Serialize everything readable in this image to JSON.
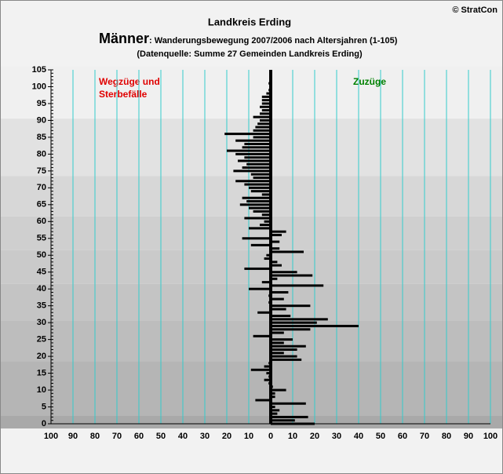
{
  "chart_data": {
    "type": "bar",
    "orientation": "horizontal",
    "copyright": "© StratCon",
    "title": "Landkreis Erding",
    "subtitle_main": "Männer",
    "subtitle_rest": ": Wanderungsbewegung 2007/2006 nach Altersjahren (1-105)",
    "source": "(Datenquelle: Summe 27 Gemeinden Landkreis Erding)",
    "annotation_left": [
      "Wegzüge und",
      "Sterbefälle"
    ],
    "annotation_right": "Zuzüge",
    "color": "#000000",
    "y": [
      0,
      1,
      2,
      3,
      4,
      5,
      6,
      7,
      8,
      9,
      10,
      11,
      12,
      13,
      14,
      15,
      16,
      17,
      18,
      19,
      20,
      21,
      22,
      23,
      24,
      25,
      26,
      27,
      28,
      29,
      30,
      31,
      32,
      33,
      34,
      35,
      36,
      37,
      38,
      39,
      40,
      41,
      42,
      43,
      44,
      45,
      46,
      47,
      48,
      49,
      50,
      51,
      52,
      53,
      54,
      55,
      56,
      57,
      58,
      59,
      60,
      61,
      62,
      63,
      64,
      65,
      66,
      67,
      68,
      69,
      70,
      71,
      72,
      73,
      74,
      75,
      76,
      77,
      78,
      79,
      80,
      81,
      82,
      83,
      84,
      85,
      86,
      87,
      88,
      89,
      90,
      91,
      92,
      93,
      94,
      95,
      96,
      97,
      98,
      99,
      100,
      101,
      102,
      103,
      104,
      105
    ],
    "values": [
      20,
      11,
      17,
      3,
      4,
      2,
      16,
      -7,
      2,
      2,
      7,
      1,
      -1,
      -3,
      -1,
      -2,
      -9,
      -3,
      -1,
      14,
      12,
      6,
      12,
      16,
      6,
      10,
      -8,
      6,
      18,
      40,
      21,
      26,
      9,
      -6,
      7,
      18,
      -1,
      6,
      -1,
      8,
      -10,
      24,
      -4,
      3,
      19,
      12,
      -12,
      5,
      3,
      -3,
      -2,
      15,
      4,
      -9,
      4,
      -13,
      5,
      7,
      -10,
      -5,
      -3,
      -12,
      -4,
      -8,
      -10,
      -14,
      -11,
      -13,
      -4,
      -9,
      -10,
      -12,
      -16,
      -8,
      -9,
      -17,
      -13,
      -11,
      -15,
      -12,
      -16,
      -20,
      -13,
      -12,
      -16,
      -8,
      -21,
      -8,
      -7,
      -6,
      -5,
      -8,
      -5,
      -4,
      -5,
      -4,
      -4,
      -4,
      -2,
      -1,
      0,
      -1,
      0,
      0,
      0,
      0
    ],
    "ylim": [
      0,
      105
    ],
    "yticks": [
      0,
      5,
      10,
      15,
      20,
      25,
      30,
      35,
      40,
      45,
      50,
      55,
      60,
      65,
      70,
      75,
      80,
      85,
      90,
      95,
      100,
      105
    ],
    "xlim": [
      -100,
      100
    ],
    "xticks": [
      {
        "value": -100,
        "label": "100"
      },
      {
        "value": -90,
        "label": "90"
      },
      {
        "value": -80,
        "label": "80"
      },
      {
        "value": -70,
        "label": "70"
      },
      {
        "value": -60,
        "label": "60"
      },
      {
        "value": -50,
        "label": "50"
      },
      {
        "value": -40,
        "label": "40"
      },
      {
        "value": -30,
        "label": "30"
      },
      {
        "value": -20,
        "label": "20"
      },
      {
        "value": -10,
        "label": "10"
      },
      0,
      10,
      20,
      30,
      40,
      50,
      60,
      70,
      80,
      90,
      100
    ],
    "grid": true
  }
}
